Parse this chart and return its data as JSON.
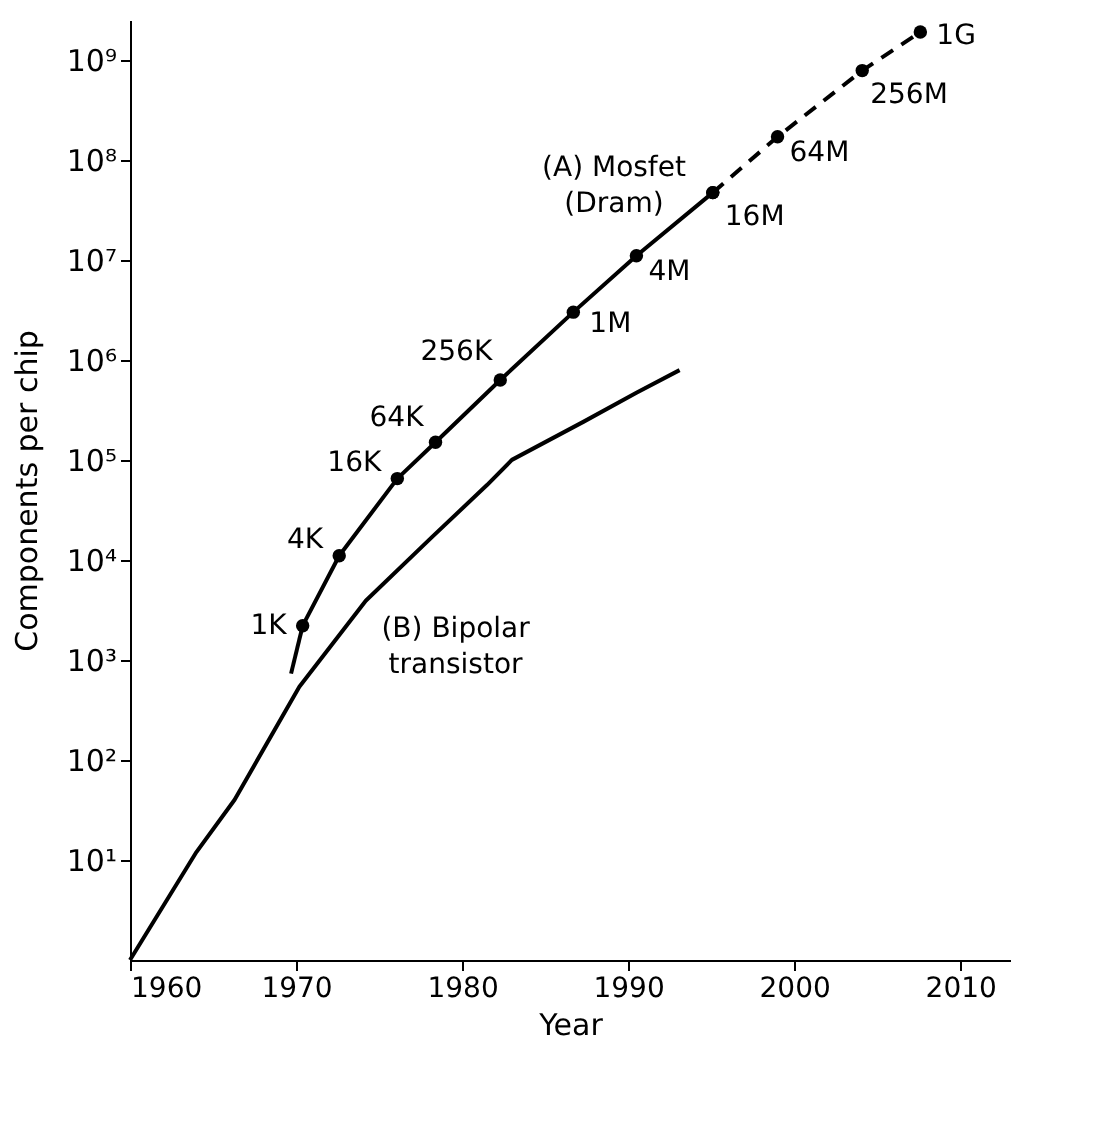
{
  "chart_data": {
    "type": "line",
    "xlabel": "Year",
    "ylabel": "Components per chip",
    "xlim": [
      1960,
      2013
    ],
    "xticks": [
      1960,
      1970,
      1980,
      1990,
      2000,
      2010
    ],
    "ylim": [
      1,
      2500000000
    ],
    "log": true,
    "yticks": [
      {
        "value": 10,
        "label": "10¹"
      },
      {
        "value": 100,
        "label": "10²"
      },
      {
        "value": 1000,
        "label": "10³"
      },
      {
        "value": 10000,
        "label": "10⁴"
      },
      {
        "value": 100000,
        "label": "10⁵"
      },
      {
        "value": 1000000,
        "label": "10⁶"
      },
      {
        "value": 10000000,
        "label": "10⁷"
      },
      {
        "value": 100000000,
        "label": "10⁸"
      },
      {
        "value": 1000000000,
        "label": "10⁹"
      }
    ],
    "grid": false,
    "series": [
      {
        "color": "#000000",
        "x": [
          1969.7,
          1970.4
        ],
        "values": [
          730,
          2200
        ],
        "line_style": "solid"
      },
      {
        "color": "#000000",
        "x": [
          1970.4,
          1972.6,
          1976.1,
          1978.4,
          1982.3,
          1986.7,
          1990.5,
          1995.1
        ],
        "values": [
          2200,
          11000,
          65000,
          150000,
          630000,
          3000000,
          11000000,
          47000000
        ],
        "marker": "circle",
        "line_style": "solid"
      },
      {
        "color": "#000000",
        "x": [
          1995.1,
          1999.0,
          2004.1,
          2007.6
        ],
        "values": [
          47000000,
          170000000,
          780000000,
          1900000000
        ],
        "marker": "circle",
        "line_style": "dashed"
      },
      {
        "color": "#000000",
        "x": [
          1960,
          1964,
          1966.3,
          1970.2,
          1974.2,
          1978.2,
          1981.5,
          1983.0,
          1987.3,
          1990.5,
          1993.1
        ],
        "values": [
          1,
          12,
          40,
          540,
          3900,
          17000,
          56000,
          100000,
          240000,
          470000,
          790000
        ],
        "marker": "none",
        "line_style": "solid"
      }
    ],
    "annotations": [
      {
        "text": "1K",
        "x": 1970.4,
        "y": 2200
      },
      {
        "text": "4K",
        "x": 1972.6,
        "y": 11000
      },
      {
        "text": "16K",
        "x": 1976.1,
        "y": 65000
      },
      {
        "text": "64K",
        "x": 1978.4,
        "y": 150000
      },
      {
        "text": "256K",
        "x": 1982.3,
        "y": 630000
      },
      {
        "text": "1M",
        "x": 1986.7,
        "y": 3000000
      },
      {
        "text": "4M",
        "x": 1990.5,
        "y": 11000000
      },
      {
        "text": "16M",
        "x": 1995.1,
        "y": 47000000
      },
      {
        "text": "64M",
        "x": 1999.0,
        "y": 170000000
      },
      {
        "text": "256M",
        "x": 2004.1,
        "y": 780000000
      },
      {
        "text": "1G",
        "x": 2007.6,
        "y": 1900000000
      },
      "(A) Mosfet\n(Dram)",
      "(B) Bipolar\ntransistor"
    ]
  }
}
